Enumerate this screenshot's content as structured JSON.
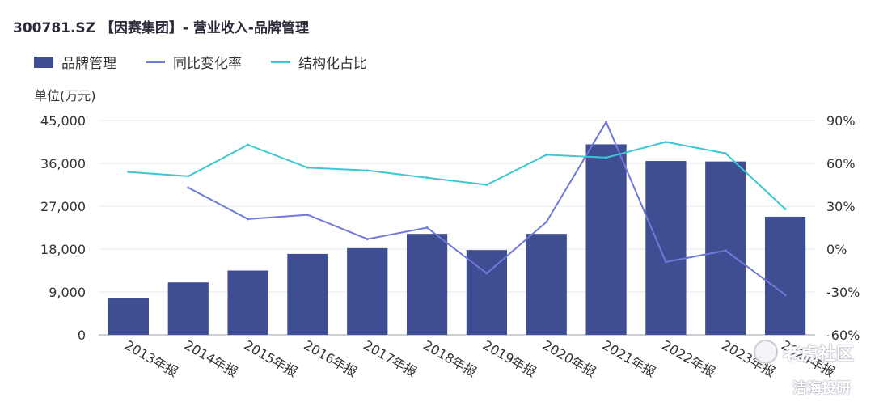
{
  "title": "300781.SZ 【因赛集团】- 营业收入-品牌管理",
  "unit": "单位(万元)",
  "colors": {
    "bar": "#3f4d92",
    "yoy": "#6f79d9",
    "share": "#3cc8d2",
    "grid": "#e6e8ee"
  },
  "legend": [
    {
      "label": "品牌管理",
      "kind": "bar",
      "color": "#3f4d92"
    },
    {
      "label": "同比变化率",
      "kind": "line",
      "color": "#6f79d9"
    },
    {
      "label": "结构化占比",
      "kind": "line",
      "color": "#3cc8d2"
    }
  ],
  "chart_data": {
    "type": "bar+line",
    "categories": [
      "2013年报",
      "2014年报",
      "2015年报",
      "2016年报",
      "2017年报",
      "2018年报",
      "2019年报",
      "2020年报",
      "2021年报",
      "2022年报",
      "2023年报",
      "2024年报"
    ],
    "left_axis": {
      "ylim": [
        0,
        45000
      ],
      "ticks": [
        "0",
        "9,000",
        "18,000",
        "27,000",
        "36,000",
        "45,000"
      ],
      "tick_values": [
        0,
        9000,
        18000,
        27000,
        36000,
        45000
      ]
    },
    "right_axis": {
      "ylim": [
        -60,
        90
      ],
      "ticks": [
        "-60%",
        "-30%",
        "0%",
        "30%",
        "60%",
        "90%"
      ],
      "tick_values": [
        -60,
        -30,
        0,
        30,
        60,
        90
      ]
    },
    "series": [
      {
        "name": "品牌管理",
        "type": "bar",
        "axis": "left",
        "values": [
          7800,
          11000,
          13500,
          17000,
          18200,
          21200,
          17800,
          21200,
          40000,
          36500,
          36400,
          24800
        ]
      },
      {
        "name": "同比变化率",
        "type": "line",
        "axis": "right",
        "values": [
          null,
          43,
          21,
          24,
          7,
          15,
          -17,
          19,
          89,
          -9,
          -1,
          -32
        ]
      },
      {
        "name": "结构化占比",
        "type": "line",
        "axis": "right",
        "values": [
          54,
          51,
          73,
          57,
          55,
          50,
          45,
          66,
          64,
          75,
          67,
          28
        ]
      }
    ],
    "grid": true,
    "legend_position": "top-left"
  },
  "watermarks": {
    "tiger": "老虎社区",
    "research": "洁海投研"
  }
}
